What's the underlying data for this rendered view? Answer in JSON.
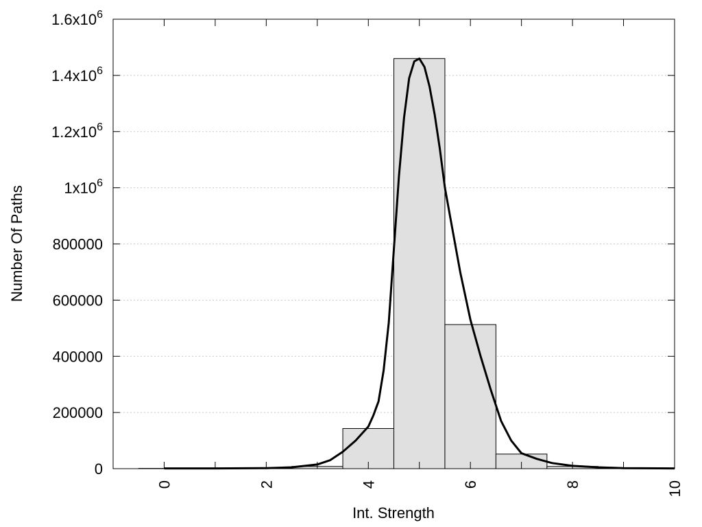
{
  "chart_data": {
    "type": "bar",
    "title": "",
    "xlabel": "Int. Strength",
    "ylabel": "Number Of Paths",
    "xlim": [
      -1,
      10
    ],
    "ylim": [
      0,
      1600000
    ],
    "grid": true,
    "x_ticks": [
      {
        "value": 0,
        "label": "0"
      },
      {
        "value": 2,
        "label": "2"
      },
      {
        "value": 4,
        "label": "4"
      },
      {
        "value": 6,
        "label": "6"
      },
      {
        "value": 8,
        "label": "8"
      },
      {
        "value": 10,
        "label": "10"
      }
    ],
    "y_ticks": [
      {
        "value": 0,
        "label": "0"
      },
      {
        "value": 200000,
        "label": "200000"
      },
      {
        "value": 400000,
        "label": "400000"
      },
      {
        "value": 600000,
        "label": "600000"
      },
      {
        "value": 800000,
        "label": "800000"
      },
      {
        "value": 1000000,
        "label": "1x10",
        "sup": "6"
      },
      {
        "value": 1200000,
        "label": "1.2x10",
        "sup": "6"
      },
      {
        "value": 1400000,
        "label": "1.4x10",
        "sup": "6"
      },
      {
        "value": 1600000,
        "label": "1.6x10",
        "sup": "6"
      }
    ],
    "bars": {
      "categories": [
        0,
        1,
        2,
        3,
        4,
        5,
        6,
        7,
        8,
        9
      ],
      "values": [
        1000,
        1000,
        2000,
        8000,
        143000,
        1460000,
        513000,
        52000,
        8000,
        1000
      ],
      "bin_width": 1,
      "fill": "#e0e0e0",
      "stroke": "#000000"
    },
    "curve": {
      "color": "#000000",
      "x": [
        0,
        1,
        2,
        2.5,
        3,
        3.25,
        3.5,
        3.75,
        4,
        4.1,
        4.2,
        4.3,
        4.4,
        4.5,
        4.6,
        4.7,
        4.8,
        4.9,
        5,
        5.1,
        5.2,
        5.3,
        5.4,
        5.5,
        5.6,
        5.8,
        6,
        6.2,
        6.4,
        6.6,
        6.8,
        7,
        7.3,
        7.6,
        8,
        8.5,
        9,
        10
      ],
      "y": [
        1000,
        1000,
        2000,
        5000,
        15000,
        30000,
        60000,
        100000,
        150000,
        190000,
        240000,
        350000,
        520000,
        780000,
        1040000,
        1250000,
        1390000,
        1450000,
        1460000,
        1430000,
        1360000,
        1260000,
        1140000,
        1000000,
        900000,
        700000,
        530000,
        400000,
        280000,
        170000,
        100000,
        55000,
        35000,
        20000,
        10000,
        5000,
        2000,
        1000
      ]
    }
  }
}
